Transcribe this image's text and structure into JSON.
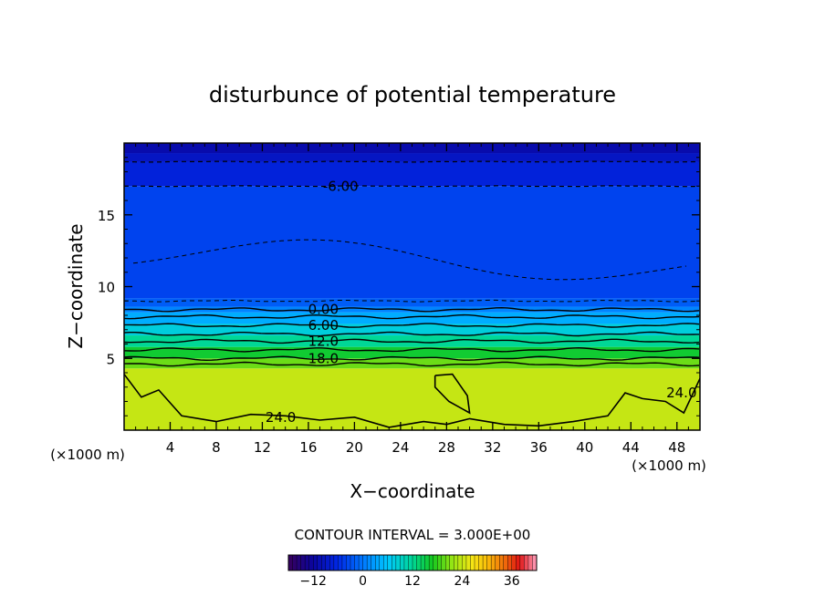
{
  "chart_data": {
    "type": "heatmap",
    "title": "disturbunce of potential temperature",
    "xlabel": "X−coordinate",
    "ylabel": "Z−coordinate",
    "x_unit_label": "(×1000 m)",
    "x_unit_label_right": "(×1000 m)",
    "xlim": [
      0,
      50
    ],
    "ylim": [
      0,
      20
    ],
    "x_ticks": [
      4,
      8,
      12,
      16,
      20,
      24,
      28,
      32,
      36,
      40,
      44,
      48
    ],
    "y_ticks": [
      5,
      10,
      15
    ],
    "contour_interval_text": "CONTOUR INTERVAL = 3.000E+00",
    "contour_interval": 3,
    "contour_labels": [
      {
        "text": "-6.00",
        "x": 18.8,
        "z": 17.0
      },
      {
        "text": "0.00",
        "x": 17.3,
        "z": 8.4
      },
      {
        "text": "6.00",
        "x": 17.3,
        "z": 7.3
      },
      {
        "text": "12.0",
        "x": 17.3,
        "z": 6.2
      },
      {
        "text": "18.0",
        "x": 17.3,
        "z": 5.0
      },
      {
        "text": "24.0",
        "x": 13.6,
        "z": 0.9
      },
      {
        "text": "24.0",
        "x": 48.4,
        "z": 2.6
      }
    ],
    "colorbar": {
      "range": [
        -18,
        42
      ],
      "ticks": [
        -12,
        0,
        12,
        24,
        36
      ]
    },
    "field_bands": [
      {
        "z": [
          0,
          4.3
        ],
        "value": 24
      },
      {
        "z": [
          4.3,
          5.0
        ],
        "value": 20
      },
      {
        "z": [
          5.0,
          5.8
        ],
        "value": 16
      },
      {
        "z": [
          5.8,
          6.6
        ],
        "value": 12
      },
      {
        "z": [
          6.6,
          7.4
        ],
        "value": 8
      },
      {
        "z": [
          7.4,
          8.2
        ],
        "value": 4
      },
      {
        "z": [
          8.2,
          8.6
        ],
        "value": 1
      },
      {
        "z": [
          8.6,
          9.2
        ],
        "value": -2
      },
      {
        "z": [
          9.2,
          17.0
        ],
        "value": -4
      },
      {
        "z": [
          17.0,
          18.7
        ],
        "value": -7
      },
      {
        "z": [
          18.7,
          19.3
        ],
        "value": -9
      },
      {
        "z": [
          19.3,
          20.0
        ],
        "value": -11
      }
    ]
  }
}
